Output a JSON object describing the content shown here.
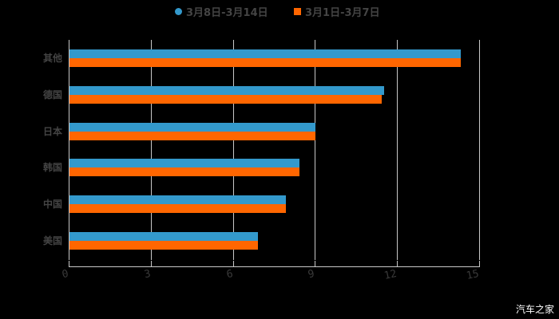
{
  "legend": [
    {
      "label": "3月8日-3月14日",
      "color": "#3399cc",
      "shape": "circle"
    },
    {
      "label": "3月1日-3月7日",
      "color": "#ff6600",
      "shape": "square"
    }
  ],
  "watermark": "汽车之家",
  "axis": {
    "ticks": [
      "0",
      "3",
      "6",
      "9",
      "12",
      "15"
    ]
  },
  "categories": [
    "其他",
    "德国",
    "日本",
    "韩国",
    "中国",
    "美国"
  ],
  "chart_data": {
    "type": "bar",
    "orientation": "horizontal",
    "title": "",
    "xlabel": "",
    "ylabel": "",
    "categories": [
      "其他",
      "德国",
      "日本",
      "韩国",
      "中国",
      "美国"
    ],
    "series": [
      {
        "name": "3月8日-3月14日",
        "color": "#3399cc",
        "values": [
          14.3,
          11.5,
          9.0,
          8.4,
          7.9,
          6.9
        ]
      },
      {
        "name": "3月1日-3月7日",
        "color": "#ff6600",
        "values": [
          14.3,
          11.4,
          9.0,
          8.4,
          7.9,
          6.9
        ]
      }
    ],
    "xlim": [
      0,
      15
    ],
    "xticks": [
      0,
      3,
      6,
      9,
      12,
      15
    ],
    "grid": true,
    "legend_position": "top"
  }
}
